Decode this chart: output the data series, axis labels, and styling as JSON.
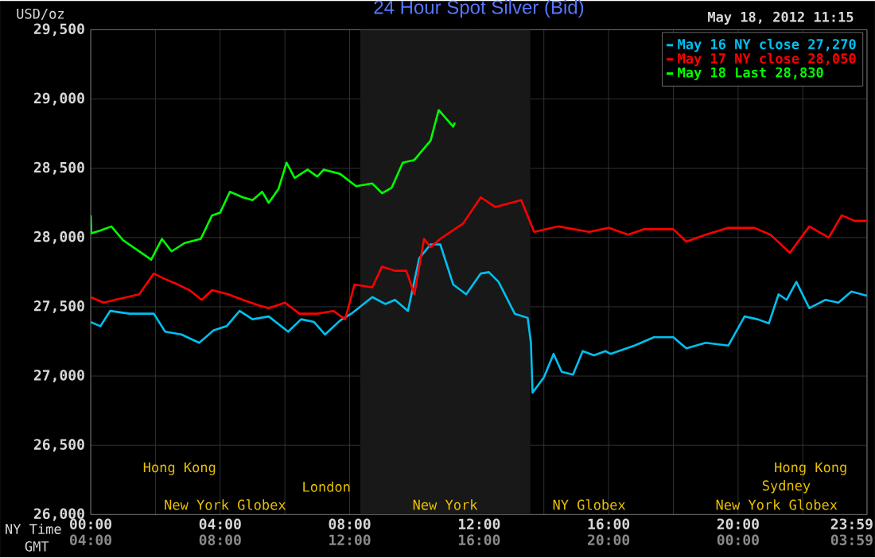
{
  "chart_data": {
    "type": "line",
    "title": "24 Hour Spot Silver (Bid)",
    "xlabel": "NY Time",
    "x2label": "GMT",
    "ylabel": "USD/oz",
    "annotations": [
      "May 18, 2012 11:15",
      "Hong Kong",
      "London",
      "New York Globex",
      "New York",
      "NY Globex",
      "New York Globex",
      "Sydney",
      "Hong Kong"
    ],
    "xlim": [
      0,
      23.983
    ],
    "ylim": [
      26000,
      29500
    ],
    "xticks": [
      {
        "value": 0,
        "label": "00:00"
      },
      {
        "value": 2,
        "label": null
      },
      {
        "value": 4,
        "label": "04:00"
      },
      {
        "value": 6,
        "label": null
      },
      {
        "value": 8,
        "label": "08:00"
      },
      {
        "value": 10,
        "label": null
      },
      {
        "value": 12,
        "label": "12:00"
      },
      {
        "value": 14,
        "label": null
      },
      {
        "value": 16,
        "label": "16:00"
      },
      {
        "value": 18,
        "label": null
      },
      {
        "value": 20,
        "label": "20:00"
      },
      {
        "value": 22,
        "label": null
      },
      {
        "value": 23.983,
        "label": "23:59"
      }
    ],
    "x2lim": [
      "2012-05-18T04:00",
      "2012-05-19T03:59"
    ],
    "x2ticks": [
      {
        "value": "2012-05-18T04:00",
        "label": "04:00"
      },
      {
        "value": "2012-05-18T08:00",
        "label": "08:00"
      },
      {
        "value": "2012-05-18T12:00",
        "label": "12:00"
      },
      {
        "value": "2012-05-18T16:00",
        "label": "16:00"
      },
      {
        "value": "2012-05-18T20:00",
        "label": "20:00"
      },
      {
        "value": "2012-05-19T00:00",
        "label": "00:00"
      },
      {
        "value": "2012-05-19T03:59",
        "label": "03:59"
      }
    ],
    "yticks": [
      {
        "value": 26000,
        "label": "26,000"
      },
      {
        "value": 26500,
        "label": "26,500"
      },
      {
        "value": 27000,
        "label": "27,000"
      },
      {
        "value": 27500,
        "label": "27,500"
      },
      {
        "value": 28000,
        "label": "28,000"
      },
      {
        "value": 28500,
        "label": "28,500"
      },
      {
        "value": 29000,
        "label": "29,000"
      },
      {
        "value": 29500,
        "label": "29,500"
      }
    ],
    "grid": true,
    "legend": "top right",
    "marker": "none",
    "line_style": "solid",
    "bands": [
      {
        "axis": "x",
        "from": 8.33,
        "to": 13.58,
        "color": "#181818"
      }
    ],
    "series": [
      {
        "name": "May 16 NY close 27,270",
        "color": "#00c0f0",
        "x": [
          0,
          0.3,
          0.6,
          1.2,
          1.95,
          2.3,
          2.8,
          3.35,
          3.8,
          4.2,
          4.6,
          5.0,
          5.5,
          6.1,
          6.5,
          6.9,
          7.24,
          7.7,
          8.05,
          8.7,
          9.1,
          9.4,
          9.8,
          10.15,
          10.5,
          10.8,
          11.2,
          11.6,
          12.05,
          12.3,
          12.6,
          13.1,
          13.5,
          13.6,
          13.65,
          14.0,
          14.3,
          14.55,
          14.9,
          15.2,
          15.55,
          15.9,
          16.06,
          16.8,
          17.4,
          18.0,
          18.4,
          19.0,
          19.7,
          20.2,
          20.6,
          20.95,
          21.25,
          21.5,
          21.8,
          22.2,
          22.7,
          23.1,
          23.5,
          23.983
        ],
        "values": [
          27390,
          27360,
          27470,
          27450,
          27450,
          27320,
          27300,
          27240,
          27330,
          27360,
          27470,
          27410,
          27430,
          27320,
          27410,
          27390,
          27300,
          27400,
          27450,
          27570,
          27520,
          27550,
          27470,
          27850,
          27950,
          27950,
          27660,
          27590,
          27740,
          27750,
          27680,
          27450,
          27420,
          27240,
          26880,
          26990,
          27160,
          27030,
          27010,
          27180,
          27150,
          27180,
          27160,
          27220,
          27280,
          27280,
          27200,
          27240,
          27220,
          27430,
          27410,
          27380,
          27590,
          27550,
          27680,
          27490,
          27550,
          27530,
          27610,
          27580
        ]
      },
      {
        "name": "May 17 NY close 28,050",
        "color": "#ff0000",
        "x": [
          0,
          0.4,
          0.75,
          1.5,
          1.95,
          2.3,
          2.7,
          3.05,
          3.43,
          3.75,
          4.25,
          4.7,
          5.2,
          5.5,
          6.0,
          6.45,
          7.0,
          7.5,
          7.86,
          8.15,
          8.7,
          9.0,
          9.4,
          9.75,
          10.0,
          10.3,
          10.5,
          10.8,
          11.5,
          12.05,
          12.5,
          13.3,
          13.7,
          14.45,
          15.4,
          16.0,
          16.6,
          17.1,
          18.0,
          18.4,
          19.0,
          19.7,
          20.5,
          21.0,
          21.6,
          22.2,
          22.8,
          23.2,
          23.6,
          23.983
        ],
        "values": [
          27570,
          27530,
          27550,
          27590,
          27740,
          27700,
          27660,
          27620,
          27550,
          27620,
          27590,
          27550,
          27510,
          27490,
          27530,
          27450,
          27450,
          27470,
          27410,
          27660,
          27640,
          27790,
          27760,
          27760,
          27590,
          27990,
          27930,
          27990,
          28100,
          28290,
          28220,
          28270,
          28040,
          28080,
          28040,
          28070,
          28020,
          28060,
          28060,
          27970,
          28020,
          28070,
          28070,
          28020,
          27890,
          28080,
          28000,
          28160,
          28120,
          28120
        ]
      },
      {
        "name": "May 18 Last 28,830",
        "color": "#00ff00",
        "x": [
          0,
          0.02,
          0.3,
          0.64,
          1.0,
          1.87,
          2.2,
          2.5,
          2.9,
          3.4,
          3.75,
          4.0,
          4.3,
          4.7,
          5.0,
          5.3,
          5.5,
          5.8,
          6.05,
          6.3,
          6.7,
          7.0,
          7.2,
          7.7,
          8.2,
          8.7,
          9.0,
          9.3,
          9.64,
          10.0,
          10.5,
          10.75,
          10.9,
          11.2,
          11.25
        ],
        "values": [
          28160,
          28030,
          28050,
          28080,
          27980,
          27840,
          27990,
          27900,
          27960,
          27990,
          28160,
          28180,
          28330,
          28290,
          28270,
          28330,
          28250,
          28350,
          28540,
          28430,
          28490,
          28440,
          28490,
          28460,
          28370,
          28390,
          28320,
          28360,
          28540,
          28560,
          28700,
          28920,
          28880,
          28800,
          28830
        ]
      }
    ]
  }
}
